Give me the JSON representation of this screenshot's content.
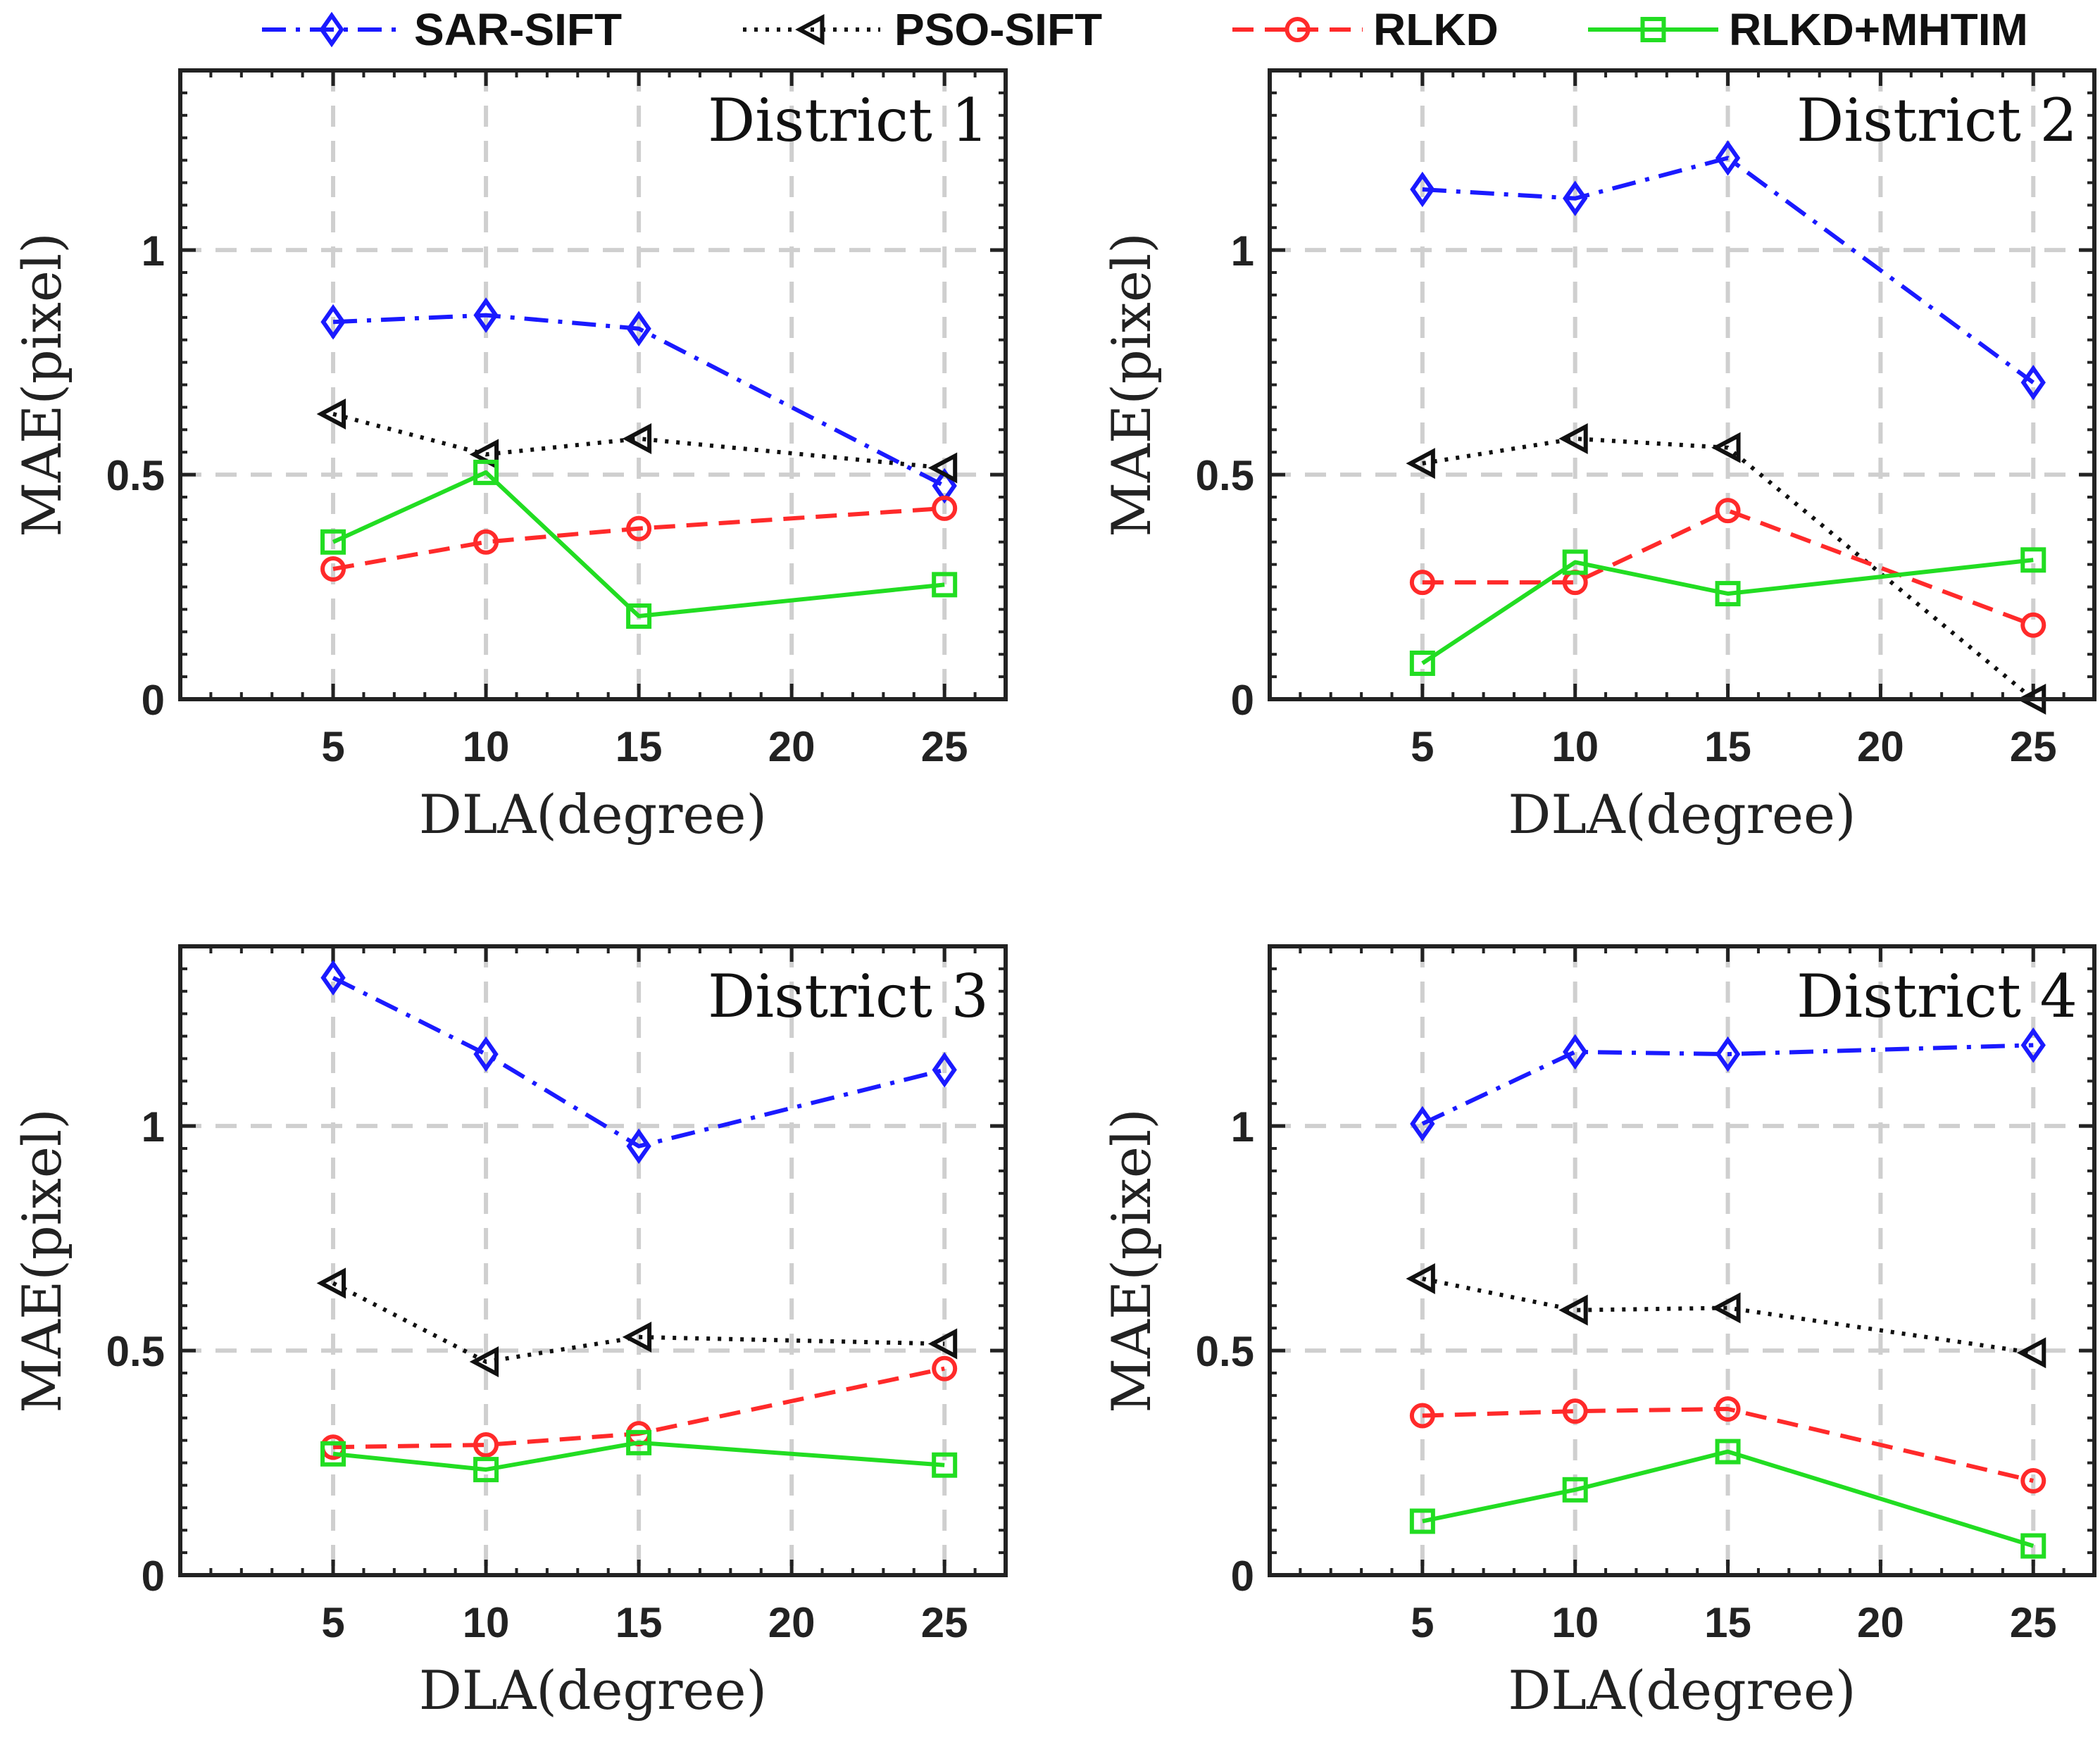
{
  "legend": [
    {
      "name": "SAR-SIFT",
      "color": "#1a1aff",
      "marker": "diamond",
      "dash": "dashdot"
    },
    {
      "name": "PSO-SIFT",
      "color": "#111111",
      "marker": "triangle-left",
      "dash": "dotted"
    },
    {
      "name": "RLKD",
      "color": "#ff2a2a",
      "marker": "circle",
      "dash": "dashed"
    },
    {
      "name": "RLKD+MHTIM",
      "color": "#22dd22",
      "marker": "square",
      "dash": "solid"
    }
  ],
  "chart_data": [
    {
      "type": "line",
      "title": "District 1",
      "xlabel": "DLA(degree)",
      "ylabel": "MAE(pixel)",
      "xlim": [
        0,
        27
      ],
      "ylim": [
        0,
        1.4
      ],
      "xticks": [
        5,
        10,
        15,
        20,
        25
      ],
      "yticks": [
        0,
        0.5,
        1
      ],
      "ytick_labels": [
        "0",
        "0.5",
        "1"
      ],
      "x": [
        5,
        10,
        15,
        25
      ],
      "series": [
        {
          "name": "SAR-SIFT",
          "values": [
            0.84,
            0.855,
            0.825,
            0.475
          ]
        },
        {
          "name": "PSO-SIFT",
          "values": [
            0.635,
            0.545,
            0.58,
            0.515
          ]
        },
        {
          "name": "RLKD",
          "values": [
            0.29,
            0.35,
            0.38,
            0.425
          ]
        },
        {
          "name": "RLKD+MHTIM",
          "values": [
            0.35,
            0.505,
            0.185,
            0.255
          ]
        }
      ]
    },
    {
      "type": "line",
      "title": "District 2",
      "xlabel": "DLA(degree)",
      "ylabel": "MAE(pixel)",
      "xlim": [
        0,
        27
      ],
      "ylim": [
        0,
        1.4
      ],
      "xticks": [
        5,
        10,
        15,
        20,
        25
      ],
      "yticks": [
        0,
        0.5,
        1
      ],
      "ytick_labels": [
        "0",
        "0.5",
        "1"
      ],
      "x": [
        5,
        10,
        15,
        25
      ],
      "series": [
        {
          "name": "SAR-SIFT",
          "values": [
            1.135,
            1.115,
            1.205,
            0.705
          ]
        },
        {
          "name": "PSO-SIFT",
          "values": [
            0.525,
            0.58,
            0.56,
            0.0
          ]
        },
        {
          "name": "RLKD",
          "values": [
            0.26,
            0.26,
            0.42,
            0.165
          ]
        },
        {
          "name": "RLKD+MHTIM",
          "values": [
            0.08,
            0.305,
            0.235,
            0.31
          ]
        }
      ]
    },
    {
      "type": "line",
      "title": "District 3",
      "xlabel": "DLA(degree)",
      "ylabel": "MAE(pixel)",
      "xlim": [
        0,
        27
      ],
      "ylim": [
        0,
        1.4
      ],
      "xticks": [
        5,
        10,
        15,
        20,
        25
      ],
      "yticks": [
        0,
        0.5,
        1
      ],
      "ytick_labels": [
        "0",
        "0.5",
        "1"
      ],
      "x": [
        5,
        10,
        15,
        25
      ],
      "series": [
        {
          "name": "SAR-SIFT",
          "values": [
            1.33,
            1.16,
            0.955,
            1.125
          ]
        },
        {
          "name": "PSO-SIFT",
          "values": [
            0.65,
            0.475,
            0.53,
            0.515
          ]
        },
        {
          "name": "RLKD",
          "values": [
            0.285,
            0.29,
            0.315,
            0.46
          ]
        },
        {
          "name": "RLKD+MHTIM",
          "values": [
            0.27,
            0.235,
            0.295,
            0.245
          ]
        }
      ]
    },
    {
      "type": "line",
      "title": "District 4",
      "xlabel": "DLA(degree)",
      "ylabel": "MAE(pixel)",
      "xlim": [
        0,
        27
      ],
      "ylim": [
        0,
        1.4
      ],
      "xticks": [
        5,
        10,
        15,
        20,
        25
      ],
      "yticks": [
        0,
        0.5,
        1
      ],
      "ytick_labels": [
        "0",
        "0.5",
        "1"
      ],
      "x": [
        5,
        10,
        15,
        25
      ],
      "series": [
        {
          "name": "SAR-SIFT",
          "values": [
            1.005,
            1.165,
            1.16,
            1.18
          ]
        },
        {
          "name": "PSO-SIFT",
          "values": [
            0.66,
            0.59,
            0.595,
            0.495
          ]
        },
        {
          "name": "RLKD",
          "values": [
            0.355,
            0.365,
            0.37,
            0.21
          ]
        },
        {
          "name": "RLKD+MHTIM",
          "values": [
            0.12,
            0.19,
            0.275,
            0.065
          ]
        }
      ]
    }
  ]
}
